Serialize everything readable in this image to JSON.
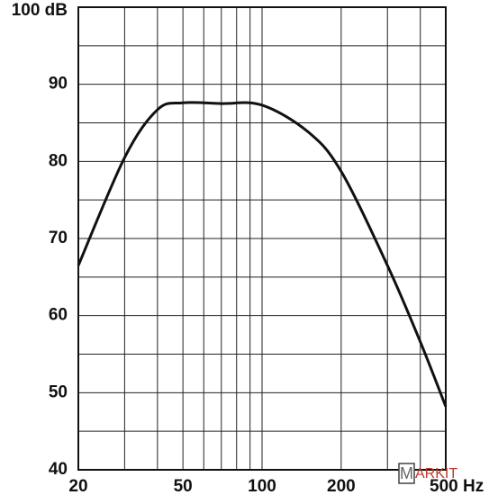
{
  "chart_data": {
    "type": "line",
    "x": [
      20,
      30,
      40,
      50,
      70,
      100,
      150,
      200,
      300,
      400,
      500
    ],
    "series": [
      {
        "color": "#111111",
        "values": [
          66.5,
          80.5,
          86.7,
          87.6,
          87.5,
          87.3,
          83.8,
          78.7,
          66.5,
          56.6,
          48.2
        ]
      }
    ],
    "xlim": [
      20,
      500
    ],
    "ylim": [
      40,
      100
    ],
    "log_x": true,
    "xticks": [
      20,
      50,
      100,
      200,
      {
        "value": 500,
        "label": "500 Hz"
      }
    ],
    "yticks": [
      40,
      50,
      60,
      70,
      80,
      90,
      {
        "value": 100,
        "label": "100 dB"
      }
    ],
    "x_grid": [
      20,
      30,
      40,
      50,
      60,
      70,
      80,
      90,
      100,
      200,
      300,
      400,
      500
    ],
    "y_grid": [
      40,
      45,
      50,
      55,
      60,
      65,
      70,
      75,
      80,
      85,
      90,
      95,
      100
    ],
    "grid": true,
    "watermark": {
      "boxed": "M",
      "text": "ARKIT"
    }
  }
}
